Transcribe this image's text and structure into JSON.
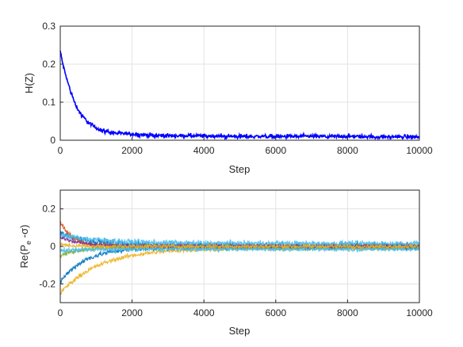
{
  "chart_data": [
    {
      "type": "line",
      "title": "",
      "xlabel": "Step",
      "ylabel": "H(Z)",
      "xlim": [
        0,
        10000
      ],
      "ylim": [
        0,
        0.3
      ],
      "xticks": [
        "0",
        "2000",
        "4000",
        "6000",
        "8000",
        "10000"
      ],
      "yticks": [
        "0",
        "0.1",
        "0.2",
        "0.3"
      ],
      "grid": true,
      "legend": "none",
      "series": [
        {
          "color": "#0000ff",
          "x": [
            0,
            50,
            100,
            200,
            300,
            400,
            500,
            600,
            800,
            1000,
            1200,
            1500,
            2000,
            2500,
            3000,
            4000,
            5000,
            6000,
            7000,
            8000,
            9000,
            10000
          ],
          "y": [
            0.235,
            0.21,
            0.19,
            0.155,
            0.125,
            0.1,
            0.08,
            0.065,
            0.045,
            0.032,
            0.025,
            0.019,
            0.016,
            0.013,
            0.012,
            0.011,
            0.01,
            0.01,
            0.01,
            0.01,
            0.009,
            0.009
          ],
          "noise": 0.004
        }
      ]
    },
    {
      "type": "line",
      "title": "",
      "xlabel": "Step",
      "ylabel_main": "Re(P",
      "ylabel_sub": "e",
      "ylabel_tail": " -σ)",
      "xlim": [
        0,
        10000
      ],
      "ylim": [
        -0.3,
        0.3
      ],
      "xticks": [
        "0",
        "2000",
        "4000",
        "6000",
        "8000",
        "10000"
      ],
      "yticks": [
        "-0.2",
        "0",
        "0.2"
      ],
      "grid": true,
      "legend": "none",
      "series": [
        {
          "color": "#0072bd",
          "start": 0.07,
          "final": 0.005,
          "tau": 900,
          "noise": 0.016
        },
        {
          "color": "#d95319",
          "start": 0.13,
          "final": 0.0,
          "tau": 350,
          "noise": 0.012
        },
        {
          "color": "#edb120",
          "start": -0.25,
          "final": -0.01,
          "tau": 1100,
          "noise": 0.01
        },
        {
          "color": "#4dbeee",
          "start": 0.06,
          "final": 0.015,
          "tau": 1300,
          "noise": 0.013
        },
        {
          "color": "#0072bd",
          "start": -0.19,
          "final": -0.005,
          "tau": 700,
          "noise": 0.012
        },
        {
          "color": "#77ac30",
          "start": -0.05,
          "final": -0.005,
          "tau": 500,
          "noise": 0.01
        },
        {
          "color": "#7e2f8e",
          "start": 0.05,
          "final": 0.0,
          "tau": 600,
          "noise": 0.008
        },
        {
          "color": "#4dbeee",
          "start": -0.02,
          "final": -0.015,
          "tau": 500,
          "noise": 0.01
        },
        {
          "color": "#edb120",
          "start": 0.01,
          "final": 0.0,
          "tau": 400,
          "noise": 0.008
        }
      ]
    }
  ]
}
